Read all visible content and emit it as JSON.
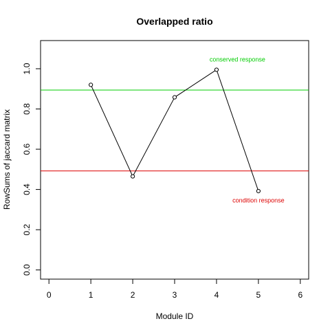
{
  "chart_data": {
    "type": "line",
    "title": "Overlapped ratio",
    "xlabel": "Module ID",
    "ylabel": "RowSums of jaccard matrix",
    "xlim": [
      -0.2,
      6.2
    ],
    "ylim": [
      -0.0456,
      1.14
    ],
    "x_ticks": [
      0,
      1,
      2,
      3,
      4,
      5,
      6
    ],
    "y_ticks": [
      0.0,
      0.2,
      0.4,
      0.6,
      0.8,
      1.0
    ],
    "x_tick_labels": [
      "0",
      "1",
      "2",
      "3",
      "4",
      "5",
      "6"
    ],
    "y_tick_labels": [
      "0.0",
      "0.2",
      "0.4",
      "0.6",
      "0.8",
      "1.0"
    ],
    "grid": false,
    "series": [
      {
        "x": [
          1,
          2,
          3,
          4,
          5
        ],
        "y": [
          0.92,
          0.465,
          0.858,
          0.995,
          0.392
        ],
        "color": "#000000",
        "marker": "open-circle"
      }
    ],
    "reference_lines": [
      {
        "y": 0.894,
        "color": "#00cc00",
        "label": "conserved response",
        "label_x": 4.5,
        "label_y": 1.035
      },
      {
        "y": 0.492,
        "color": "#dd0000",
        "label": "condition response",
        "label_x": 5.0,
        "label_y": 0.335
      }
    ]
  }
}
